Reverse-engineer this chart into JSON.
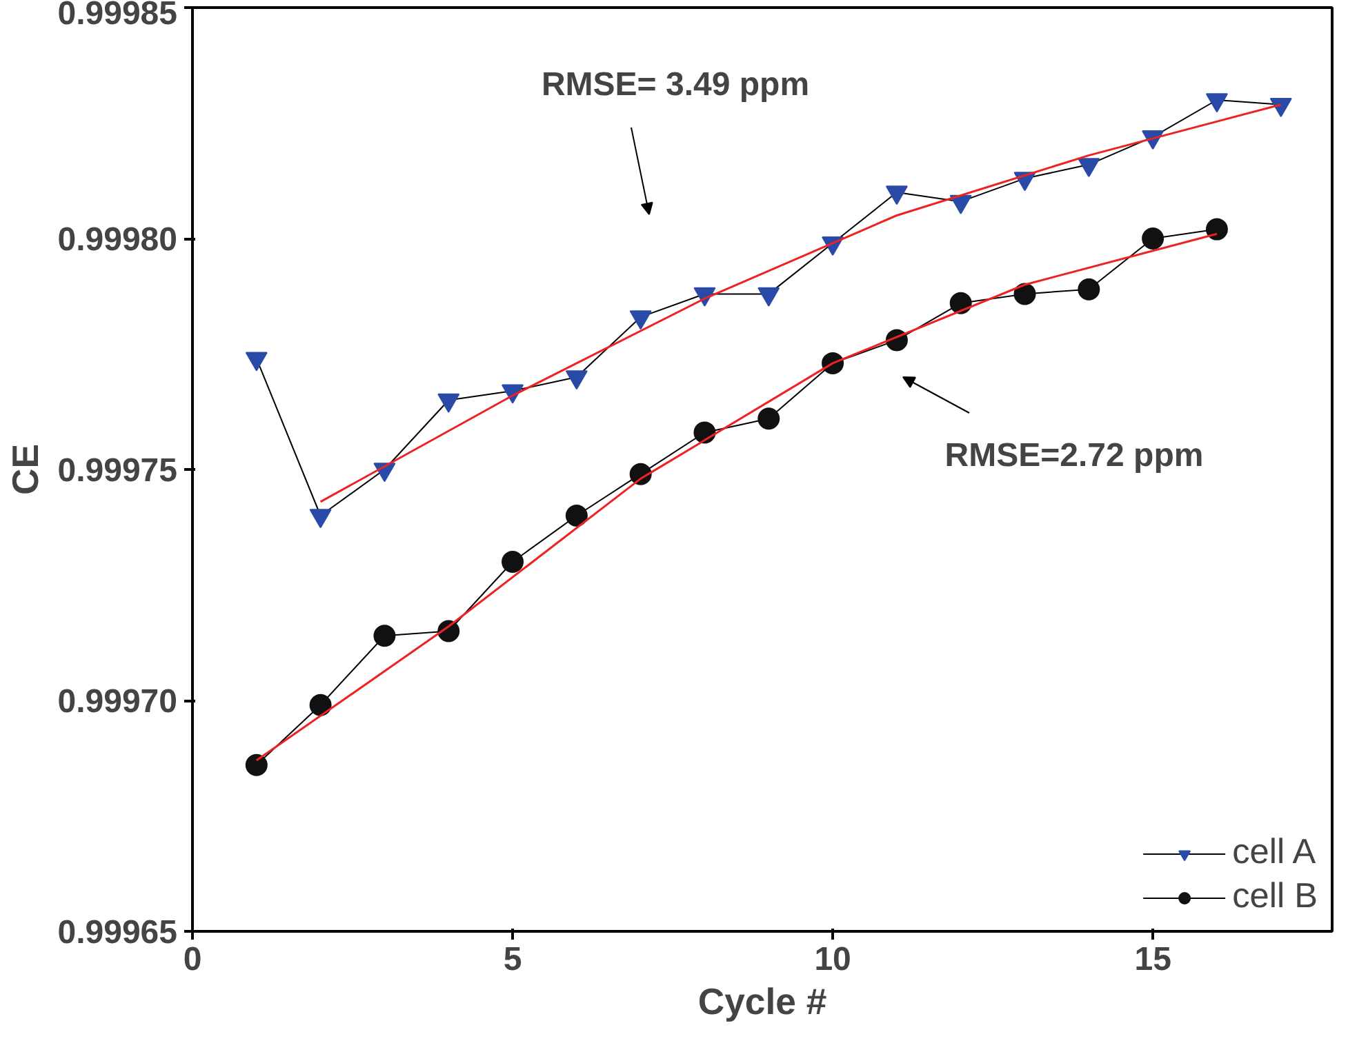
{
  "chart_data": {
    "type": "line",
    "xlabel": "Cycle #",
    "ylabel": "CE",
    "xlim": [
      0,
      17.8
    ],
    "xticks": [
      0,
      5,
      10,
      15
    ],
    "ylim": [
      0.99965,
      0.99985
    ],
    "yticks": [
      0.99965,
      {
        "value": 0.9997,
        "label": "0.99970"
      },
      0.99975,
      {
        "value": 0.9998,
        "label": "0.99980"
      },
      0.99985
    ],
    "grid": false,
    "legend": "bottom right",
    "series": [
      {
        "name": "cell A",
        "color": "#2a4aa8",
        "marker": "triangle",
        "x": [
          1,
          2,
          3,
          4,
          5,
          6,
          7,
          8,
          9,
          10,
          11,
          12,
          13,
          14,
          15,
          16,
          17
        ],
        "values": [
          0.999774,
          0.99974,
          0.99975,
          0.999765,
          0.999767,
          0.99977,
          0.999783,
          0.999788,
          0.999788,
          0.999799,
          0.99981,
          0.999808,
          0.999813,
          0.999816,
          0.999822,
          0.99983,
          0.999829
        ]
      },
      {
        "name": "cell B",
        "color": "#111111",
        "marker": "circle",
        "x": [
          1,
          2,
          3,
          4,
          5,
          6,
          7,
          8,
          9,
          10,
          11,
          12,
          13,
          14,
          15,
          16
        ],
        "values": [
          0.999686,
          0.999699,
          0.999714,
          0.999715,
          0.99973,
          0.99974,
          0.999749,
          0.999758,
          0.999761,
          0.999773,
          0.999778,
          0.999786,
          0.999788,
          0.999789,
          0.9998,
          0.999802
        ]
      },
      {
        "color": "#ee2222",
        "marker": "none",
        "x": [
          2,
          5,
          8,
          11,
          14,
          17
        ],
        "values": [
          0.999743,
          0.999766,
          0.999787,
          0.999805,
          0.999818,
          0.999829
        ]
      },
      {
        "color": "#ee2222",
        "marker": "none",
        "x": [
          1,
          4,
          7,
          10,
          13,
          16
        ],
        "values": [
          0.999687,
          0.999716,
          0.999748,
          0.999773,
          0.99979,
          0.999801
        ]
      }
    ],
    "annotations": [
      "RMSE= 3.49 ppm",
      "RMSE=2.72 ppm"
    ]
  }
}
